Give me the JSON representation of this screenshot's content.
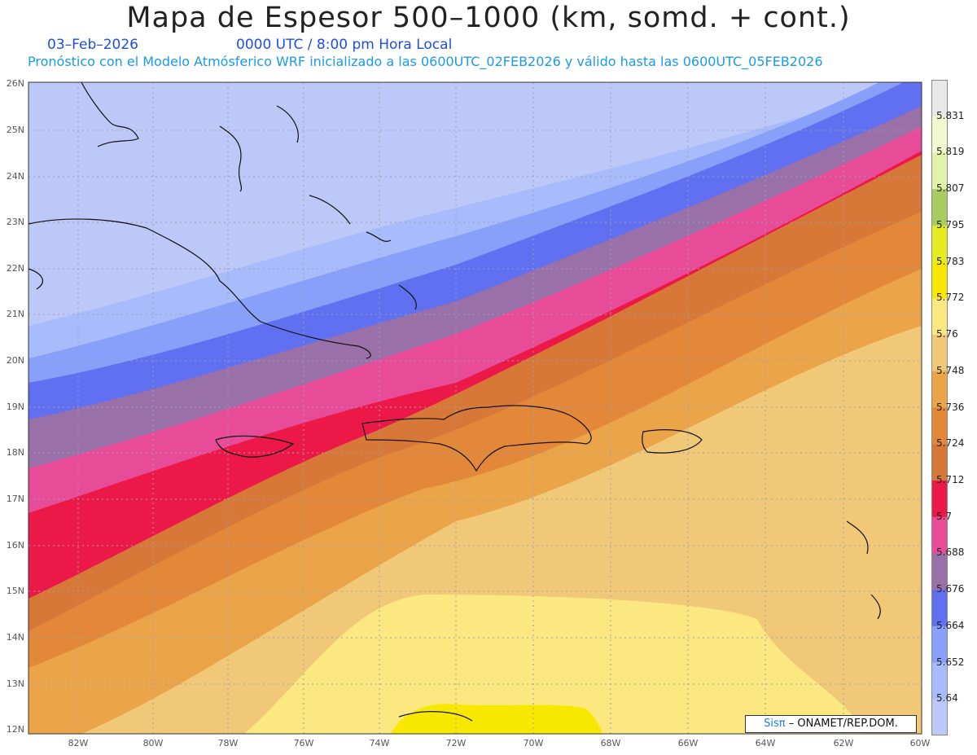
{
  "header": {
    "title": "Mapa de Espesor 500–1000 (km, somd. + cont.)",
    "date": "03–Feb–2026",
    "time": "0000 UTC / 8:00 pm Hora Local",
    "forecast_info": "Pronóstico con el Modelo Atmósferico WRF inicializado a las 0600UTC_02FEB2026 y válido hasta las  0600UTC_05FEB2026"
  },
  "map": {
    "lat_labels": [
      "26N",
      "25N",
      "24N",
      "23N",
      "22N",
      "21N",
      "20N",
      "19N",
      "18N",
      "17N",
      "16N",
      "15N",
      "14N",
      "13N",
      "12N"
    ],
    "lon_labels": [
      "82W",
      "80W",
      "78W",
      "76W",
      "74W",
      "72W",
      "70W",
      "68W",
      "66W",
      "64W",
      "62W",
      "60W"
    ],
    "credit_logo": "Sisπ",
    "credit_text": "– ONAMET/REP.DOM."
  },
  "colorbar": {
    "labels": [
      "5.831",
      "5.819",
      "5.807",
      "5.795",
      "5.783",
      "5.772",
      "5.76",
      "5.748",
      "5.736",
      "5.724",
      "5.712",
      "5.7",
      "5.688",
      "5.676",
      "5.664",
      "5.652",
      "5.64"
    ],
    "colors": [
      "#e8e8e8",
      "#f2f8d0",
      "#e2f2a8",
      "#a8cc60",
      "#e6ec20",
      "#f8e800",
      "#fce880",
      "#f0c878",
      "#eca448",
      "#e28838",
      "#d87838",
      "#ec1848",
      "#e84c98",
      "#9a70a8",
      "#6070f0",
      "#88a0fa",
      "#a8bcfc",
      "#bcc8f8"
    ]
  }
}
